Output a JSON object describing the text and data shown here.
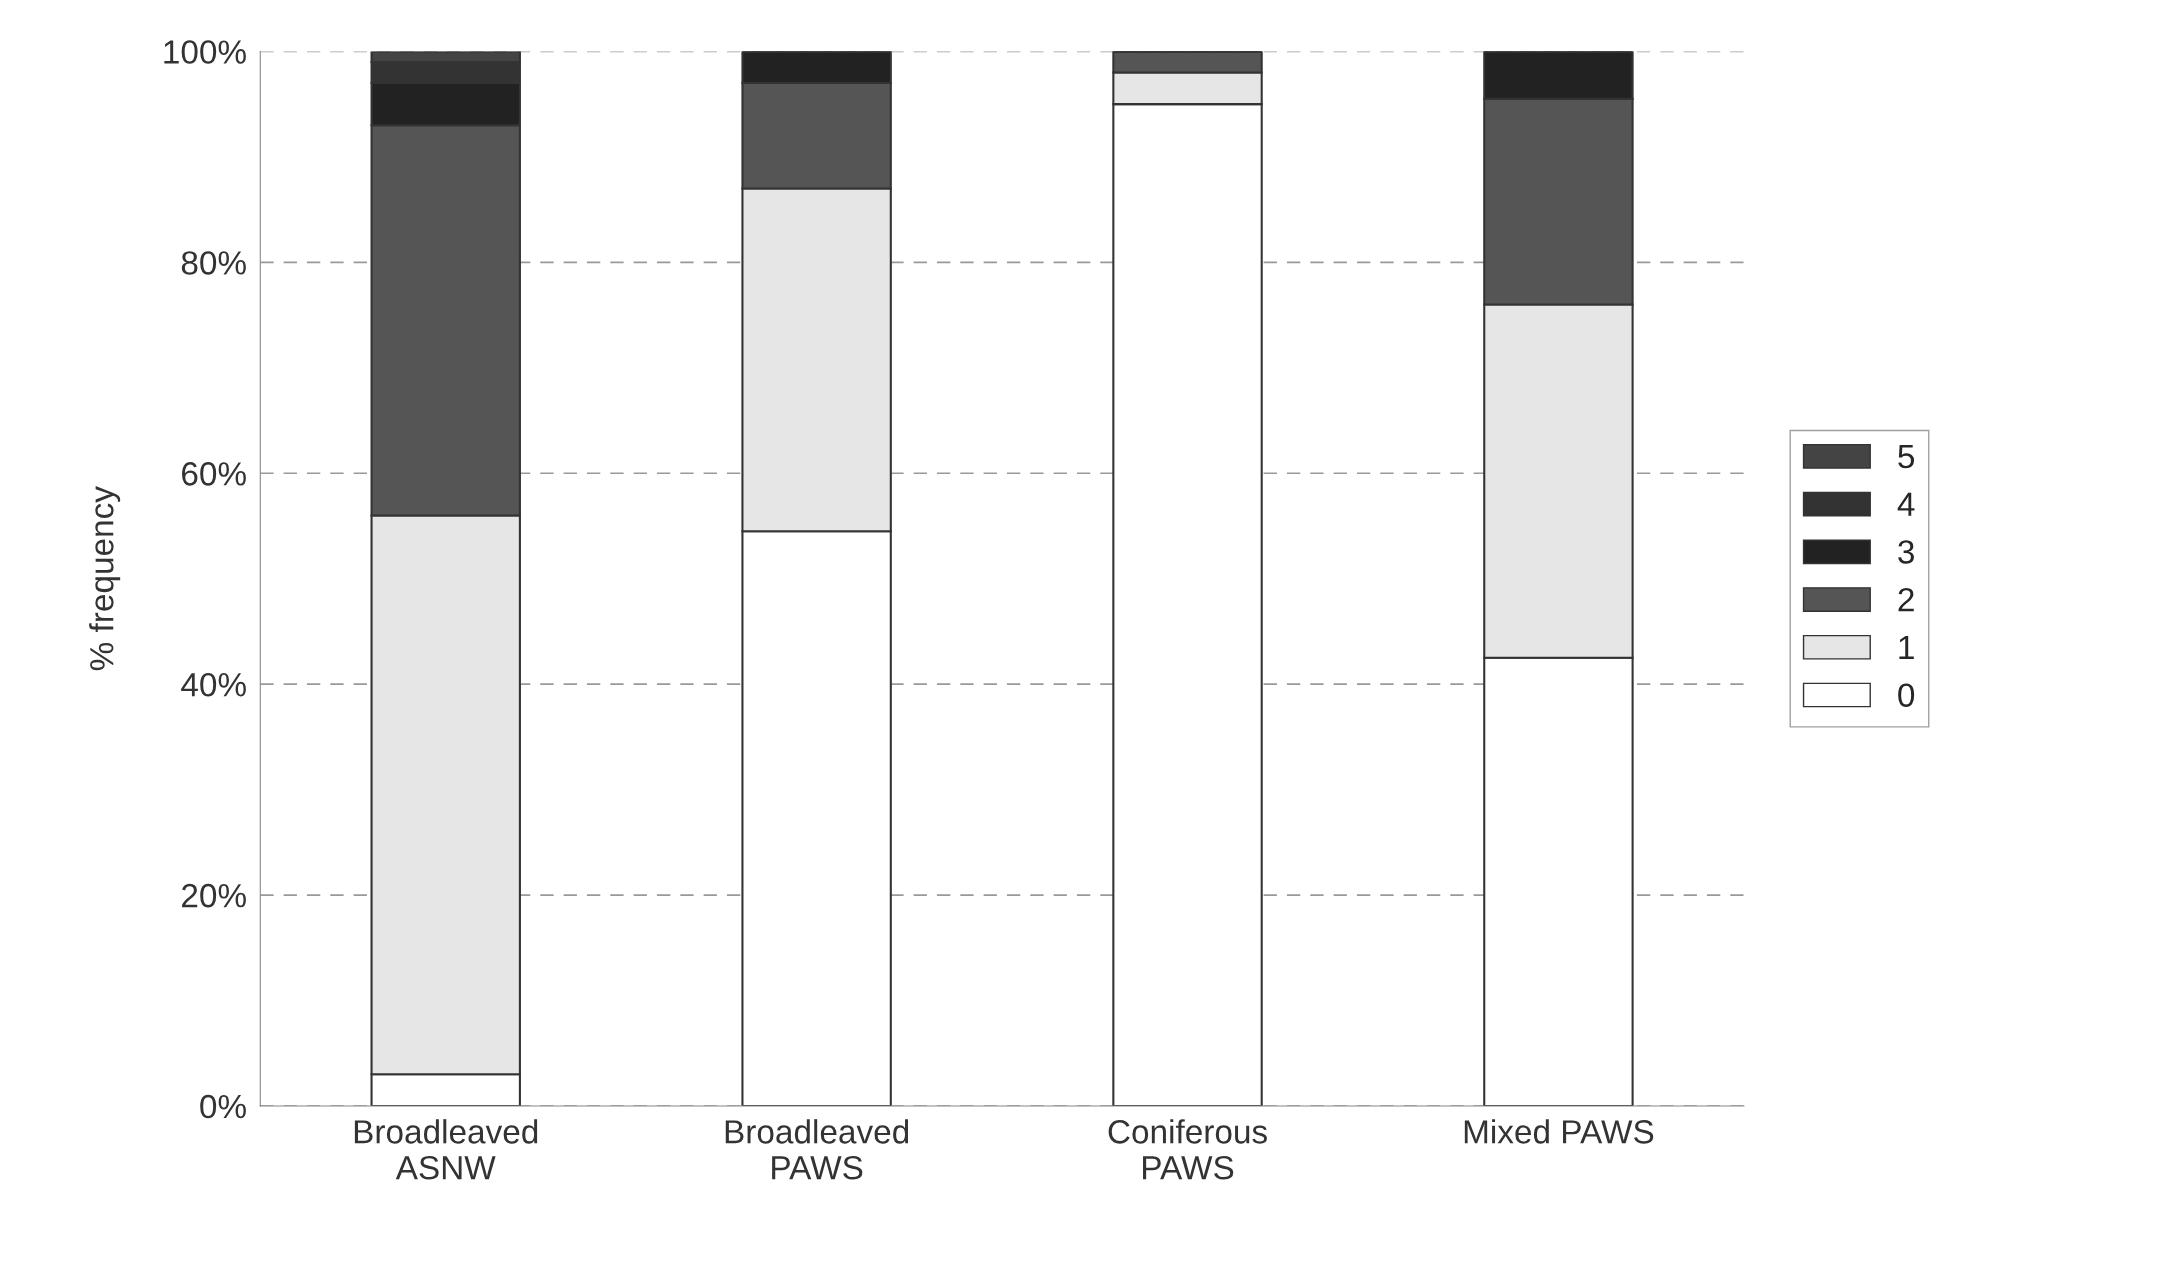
{
  "chart_data": {
    "type": "bar",
    "stacked": true,
    "ylabel": "% frequency",
    "categories": [
      "Broadleaved\nASNW",
      "Broadleaved\nPAWS",
      "Coniferous\nPAWS",
      "Mixed PAWS"
    ],
    "series": [
      {
        "name": "0",
        "color": "#ffffff",
        "values": [
          3,
          54.5,
          95,
          42.5
        ]
      },
      {
        "name": "1",
        "color": "#e6e6e6",
        "values": [
          53,
          32.5,
          3,
          33.5
        ]
      },
      {
        "name": "2",
        "color": "#555555",
        "values": [
          37,
          10,
          2,
          19.5
        ]
      },
      {
        "name": "3",
        "color": "#222222",
        "values": [
          4,
          3,
          0,
          4.5
        ]
      },
      {
        "name": "4",
        "color": "#333333",
        "values": [
          2,
          0,
          0,
          0
        ]
      },
      {
        "name": "5",
        "color": "#444444",
        "values": [
          1,
          0,
          0,
          0
        ]
      }
    ],
    "ylim": [
      0,
      100
    ],
    "yticks": [
      {
        "value": 0,
        "label": "0%"
      },
      {
        "value": 20,
        "label": "20%"
      },
      {
        "value": 40,
        "label": "40%"
      },
      {
        "value": 60,
        "label": "60%"
      },
      {
        "value": 80,
        "label": "80%"
      },
      {
        "value": 100,
        "label": "100%"
      }
    ],
    "grid": "y",
    "legend": "right"
  }
}
